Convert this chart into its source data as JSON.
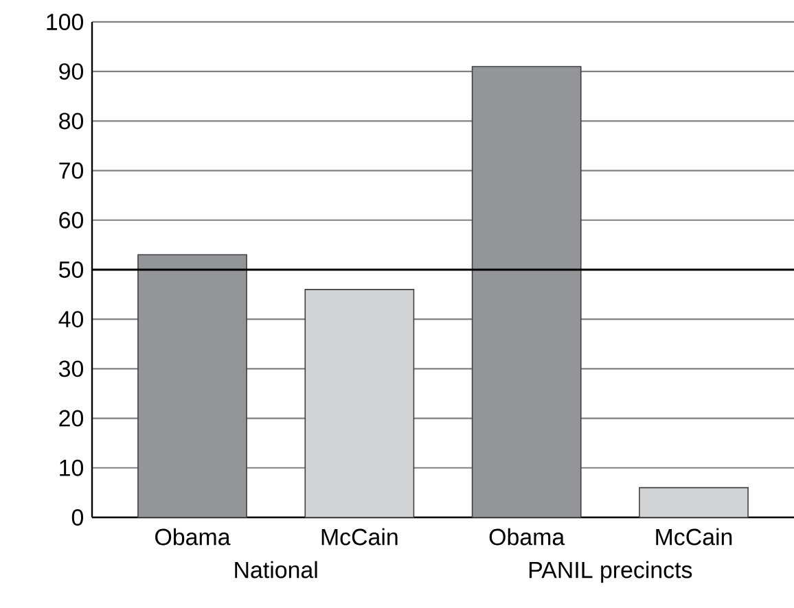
{
  "chart_data": {
    "type": "bar",
    "categories": [
      "Obama",
      "McCain",
      "Obama",
      "McCain"
    ],
    "values": [
      53,
      46,
      91,
      6
    ],
    "colors": [
      "#939598",
      "#d1d3d4",
      "#939598",
      "#d1d3d4"
    ],
    "ylim": [
      0,
      100
    ],
    "yticks": [
      0,
      10,
      20,
      30,
      40,
      50,
      60,
      70,
      80,
      90,
      100
    ],
    "grid": "y",
    "ref_lines": [
      {
        "axis": "y",
        "value": 50,
        "color": "#000000"
      }
    ],
    "annotations": [
      "National",
      "PANIL precincts"
    ]
  }
}
